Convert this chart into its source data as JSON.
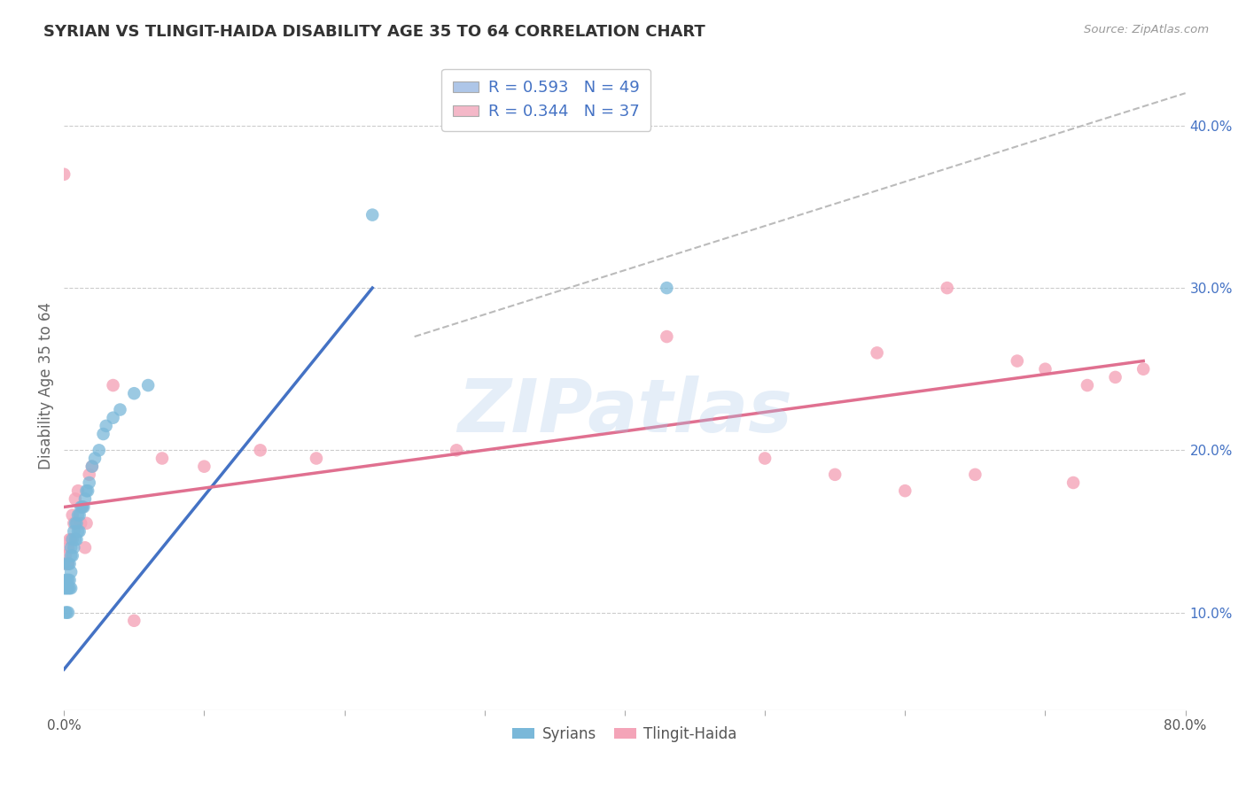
{
  "title": "SYRIAN VS TLINGIT-HAIDA DISABILITY AGE 35 TO 64 CORRELATION CHART",
  "source_text": "Source: ZipAtlas.com",
  "ylabel": "Disability Age 35 to 64",
  "xlim": [
    0.0,
    0.8
  ],
  "ylim": [
    0.04,
    0.44
  ],
  "x_ticks": [
    0.0,
    0.1,
    0.2,
    0.3,
    0.4,
    0.5,
    0.6,
    0.7,
    0.8
  ],
  "y_ticks": [
    0.1,
    0.2,
    0.3,
    0.4
  ],
  "x_tick_labels": [
    "0.0%",
    "",
    "",
    "",
    "",
    "",
    "",
    "",
    "80.0%"
  ],
  "y_tick_labels": [
    "10.0%",
    "20.0%",
    "30.0%",
    "40.0%"
  ],
  "legend_entries": [
    {
      "label": "R = 0.593   N = 49",
      "color": "#aec6e8"
    },
    {
      "label": "R = 0.344   N = 37",
      "color": "#f4b8c8"
    }
  ],
  "bottom_legend": [
    "Syrians",
    "Tlingit-Haida"
  ],
  "syrian_color": "#7ab8d9",
  "tlingit_color": "#f4a4b8",
  "syrian_line_color": "#4472c4",
  "tlingit_line_color": "#e07090",
  "ref_line_color": "#bbbbbb",
  "watermark": "ZIPatlas",
  "syrians_x": [
    0.0,
    0.0,
    0.001,
    0.001,
    0.001,
    0.002,
    0.002,
    0.002,
    0.003,
    0.003,
    0.003,
    0.003,
    0.004,
    0.004,
    0.004,
    0.005,
    0.005,
    0.005,
    0.005,
    0.006,
    0.006,
    0.007,
    0.007,
    0.008,
    0.008,
    0.009,
    0.009,
    0.01,
    0.01,
    0.011,
    0.011,
    0.012,
    0.013,
    0.014,
    0.015,
    0.016,
    0.017,
    0.018,
    0.02,
    0.022,
    0.025,
    0.028,
    0.03,
    0.035,
    0.04,
    0.05,
    0.06,
    0.22,
    0.43
  ],
  "syrians_y": [
    0.13,
    0.115,
    0.12,
    0.115,
    0.1,
    0.12,
    0.115,
    0.1,
    0.13,
    0.12,
    0.115,
    0.1,
    0.13,
    0.12,
    0.115,
    0.14,
    0.135,
    0.125,
    0.115,
    0.145,
    0.135,
    0.15,
    0.14,
    0.155,
    0.145,
    0.155,
    0.145,
    0.16,
    0.15,
    0.16,
    0.15,
    0.165,
    0.165,
    0.165,
    0.17,
    0.175,
    0.175,
    0.18,
    0.19,
    0.195,
    0.2,
    0.21,
    0.215,
    0.22,
    0.225,
    0.235,
    0.24,
    0.345,
    0.3
  ],
  "tlingit_x": [
    0.0,
    0.001,
    0.002,
    0.003,
    0.003,
    0.004,
    0.005,
    0.006,
    0.007,
    0.008,
    0.01,
    0.012,
    0.013,
    0.015,
    0.016,
    0.018,
    0.02,
    0.035,
    0.05,
    0.07,
    0.1,
    0.14,
    0.18,
    0.28,
    0.43,
    0.5,
    0.55,
    0.58,
    0.6,
    0.63,
    0.65,
    0.68,
    0.7,
    0.72,
    0.73,
    0.75,
    0.77
  ],
  "tlingit_y": [
    0.37,
    0.135,
    0.13,
    0.14,
    0.13,
    0.145,
    0.145,
    0.16,
    0.155,
    0.17,
    0.175,
    0.155,
    0.165,
    0.14,
    0.155,
    0.185,
    0.19,
    0.24,
    0.095,
    0.195,
    0.19,
    0.2,
    0.195,
    0.2,
    0.27,
    0.195,
    0.185,
    0.26,
    0.175,
    0.3,
    0.185,
    0.255,
    0.25,
    0.18,
    0.24,
    0.245,
    0.25
  ],
  "syrian_line_x": [
    0.0,
    0.22
  ],
  "syrian_line_y": [
    0.065,
    0.3
  ],
  "tlingit_line_x": [
    0.0,
    0.77
  ],
  "tlingit_line_y": [
    0.165,
    0.255
  ],
  "ref_line_x": [
    0.25,
    0.8
  ],
  "ref_line_y": [
    0.27,
    0.42
  ]
}
